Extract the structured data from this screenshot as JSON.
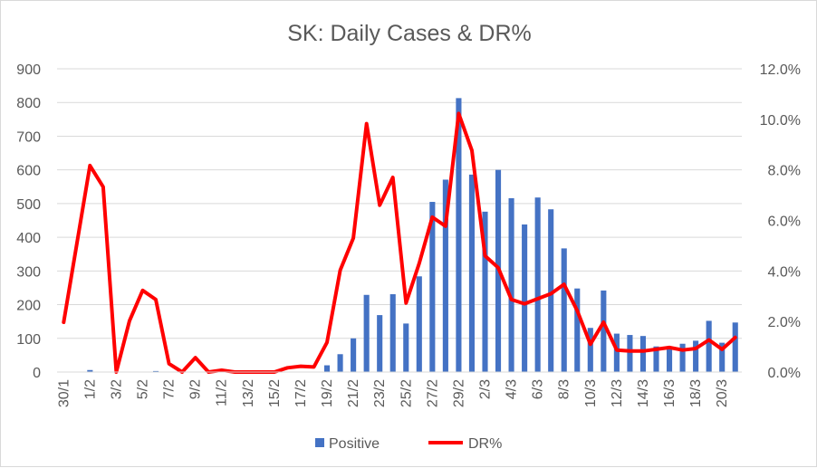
{
  "chart_data": {
    "type": "bar",
    "title": "SK: Daily Cases & DR%",
    "categories": [
      "30/1",
      "31/1",
      "1/2",
      "2/2",
      "3/2",
      "4/2",
      "5/2",
      "6/2",
      "7/2",
      "8/2",
      "9/2",
      "10/2",
      "11/2",
      "12/2",
      "13/2",
      "14/2",
      "15/2",
      "16/2",
      "17/2",
      "18/2",
      "19/2",
      "20/2",
      "21/2",
      "22/2",
      "23/2",
      "24/2",
      "25/2",
      "26/2",
      "27/2",
      "28/2",
      "29/2",
      "1/3",
      "2/3",
      "3/3",
      "4/3",
      "5/3",
      "6/3",
      "7/3",
      "8/3",
      "9/3",
      "10/3",
      "11/3",
      "12/3",
      "13/3",
      "14/3",
      "15/3",
      "16/3",
      "17/3",
      "18/3",
      "19/3",
      "20/3",
      "21/3"
    ],
    "x_tick_labels": [
      "30/1",
      "1/2",
      "3/2",
      "5/2",
      "7/2",
      "9/2",
      "11/2",
      "13/2",
      "15/2",
      "17/2",
      "19/2",
      "21/2",
      "23/2",
      "25/2",
      "27/2",
      "29/2",
      "2/3",
      "4/3",
      "6/3",
      "8/3",
      "10/3",
      "12/3",
      "14/3",
      "16/3",
      "18/3",
      "20/3"
    ],
    "y_left": {
      "min": 0,
      "max": 900,
      "step": 100,
      "ticks": [
        "0",
        "100",
        "200",
        "300",
        "400",
        "500",
        "600",
        "700",
        "800",
        "900"
      ]
    },
    "y_right": {
      "min": 0,
      "max": 0.12,
      "step": 0.02,
      "ticks": [
        "0.0%",
        "2.0%",
        "4.0%",
        "6.0%",
        "8.0%",
        "10.0%",
        "12.0%"
      ]
    },
    "series": [
      {
        "name": "Positive",
        "kind": "bar",
        "axis": "left",
        "color": "#4472c4",
        "values": [
          0,
          0,
          6,
          0,
          0,
          0,
          1,
          3,
          0,
          0,
          0,
          0,
          0,
          0,
          0,
          0,
          0,
          0,
          0,
          1,
          20,
          53,
          100,
          229,
          169,
          231,
          144,
          284,
          505,
          571,
          813,
          586,
          476,
          600,
          516,
          438,
          518,
          483,
          367,
          248,
          131,
          242,
          114,
          110,
          107,
          76,
          74,
          84,
          93,
          152,
          87,
          147
        ]
      },
      {
        "name": "DR%",
        "kind": "line",
        "axis": "right",
        "color": "#ff0000",
        "values": [
          0.0197,
          0.0507,
          0.0817,
          0.0733,
          0.0,
          0.0203,
          0.0323,
          0.0287,
          0.0033,
          0.0,
          0.0057,
          0.0,
          0.0007,
          0.0,
          0.0,
          0.0,
          0.0,
          0.0017,
          0.0023,
          0.002,
          0.0117,
          0.0403,
          0.053,
          0.0983,
          0.066,
          0.077,
          0.0273,
          0.043,
          0.0613,
          0.0577,
          0.1023,
          0.0877,
          0.046,
          0.0413,
          0.0287,
          0.027,
          0.029,
          0.031,
          0.0347,
          0.0243,
          0.011,
          0.0197,
          0.0087,
          0.0083,
          0.0083,
          0.009,
          0.0097,
          0.0087,
          0.0093,
          0.0127,
          0.009,
          0.0137
        ]
      }
    ],
    "legend": "bottom-center",
    "grid": {
      "horizontal": true,
      "vertical": false
    },
    "colors": {
      "bar": "#4472c4",
      "line": "#ff0000",
      "grid": "#d9d9d9",
      "text": "#595959"
    }
  }
}
